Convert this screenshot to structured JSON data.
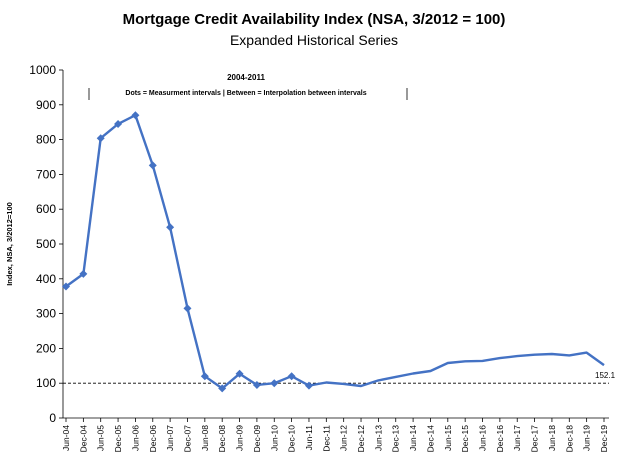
{
  "chart_data": {
    "type": "line",
    "title": "Mortgage Credit Availability Index (NSA, 3/2012 = 100)",
    "subtitle": "Expanded Historical Series",
    "ylabel": "Index, NSA, 3/2012=100",
    "xlabel": "",
    "ylim": [
      0,
      1000
    ],
    "yticks": [
      0,
      100,
      200,
      300,
      400,
      500,
      600,
      700,
      800,
      900,
      1000
    ],
    "xtick_labels": [
      "Jun-04",
      "Dec-04",
      "Jun-05",
      "Dec-05",
      "Jun-06",
      "Dec-06",
      "Jun-07",
      "Dec-07",
      "Jun-08",
      "Dec-08",
      "Jun-09",
      "Dec-09",
      "Jun-10",
      "Dec-10",
      "Jun-11",
      "Dec-11",
      "Jun-12",
      "Dec-12",
      "Jun-13",
      "Dec-13",
      "Jun-14",
      "Dec-14",
      "Jun-15",
      "Dec-15",
      "Jun-16",
      "Dec-16",
      "Jun-17",
      "Dec-17",
      "Jun-18",
      "Dec-18",
      "Jun-19",
      "Dec-19"
    ],
    "reference_line": {
      "value": 100,
      "style": "dashed"
    },
    "annotation": {
      "title": "2004-2011",
      "text": "Dots = Measurment intervals  |  Between = Interpolation between intervals"
    },
    "end_label": "152.1",
    "color": "#4472c4",
    "series": [
      {
        "name": "",
        "x": [
          "2004-06",
          "2004-12",
          "2005-06",
          "2005-12",
          "2006-06",
          "2006-12",
          "2007-06",
          "2007-12",
          "2008-06",
          "2008-12",
          "2009-06",
          "2009-12",
          "2010-06",
          "2010-12",
          "2011-06",
          "2011-12",
          "2012-06",
          "2012-12",
          "2013-06",
          "2013-12",
          "2014-06",
          "2014-12",
          "2015-06",
          "2015-12",
          "2016-06",
          "2016-12",
          "2017-06",
          "2017-12",
          "2018-06",
          "2018-12",
          "2019-06",
          "2019-12"
        ],
        "values": [
          378,
          414,
          804,
          845,
          870,
          726,
          548,
          315,
          120,
          85,
          127,
          95,
          100,
          120,
          93,
          102,
          98,
          92,
          108,
          118,
          128,
          135,
          158,
          163,
          164,
          172,
          178,
          182,
          184,
          180,
          188,
          152.1
        ],
        "markers": [
          true,
          true,
          true,
          true,
          true,
          true,
          true,
          true,
          true,
          true,
          true,
          true,
          true,
          true,
          true,
          false,
          false,
          false,
          false,
          false,
          false,
          false,
          false,
          false,
          false,
          false,
          false,
          false,
          false,
          false,
          false,
          false
        ]
      }
    ]
  }
}
